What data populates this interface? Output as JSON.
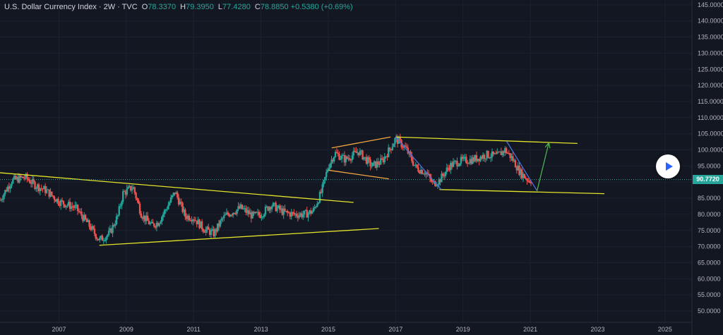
{
  "header": {
    "symbol": "U.S. Dollar Currency Index · 2W · TVC",
    "o_label": "O",
    "o_value": "78.3370",
    "h_label": "H",
    "h_value": "79.3950",
    "l_label": "L",
    "l_value": "77.4280",
    "c_label": "C",
    "c_value": "78.8850",
    "change": "+0.5380 (+0.69%)"
  },
  "last_price_label": "90.7720",
  "colors": {
    "background": "#131722",
    "up": "#26a69a",
    "down": "#ef5350",
    "trendline": "#e3e32a",
    "orange_line": "#f5a742",
    "blue_line": "#4a6fd8",
    "arrow": "#4caf50",
    "price_line": "#26a69a"
  },
  "icons": {
    "play": "play-icon"
  },
  "chart_data": {
    "type": "candlestick",
    "y_axis": {
      "ticks": [
        145,
        140,
        135,
        130,
        125,
        120,
        115,
        110,
        105,
        100,
        95,
        90,
        85,
        80,
        75,
        70,
        65,
        60,
        55,
        50
      ],
      "tick_labels": [
        "145.0000",
        "140.0000",
        "135.0000",
        "130.0000",
        "125.0000",
        "120.0000",
        "115.0000",
        "110.0000",
        "105.0000",
        "100.0000",
        "95.0000",
        "90.0000",
        "85.0000",
        "80.0000",
        "75.0000",
        "70.0000",
        "65.0000",
        "60.0000",
        "55.0000",
        "50.0000"
      ],
      "range": [
        46.5,
        146.5
      ]
    },
    "x_axis": {
      "ticks": [
        2007,
        2009,
        2011,
        2013,
        2015,
        2017,
        2019,
        2021,
        2023,
        2025
      ],
      "tick_labels": [
        "2007",
        "2009",
        "2011",
        "2013",
        "2015",
        "2017",
        "2019",
        "2021",
        "2023",
        "2025"
      ],
      "range": [
        2005.25,
        2025.8
      ]
    },
    "last_price": 90.772,
    "price_path": [
      [
        2005.25,
        84.5
      ],
      [
        2005.6,
        90.5
      ],
      [
        2006.0,
        91.5
      ],
      [
        2006.3,
        89.0
      ],
      [
        2006.6,
        87.5
      ],
      [
        2007.0,
        84.0
      ],
      [
        2007.5,
        82.0
      ],
      [
        2007.9,
        76.5
      ],
      [
        2008.2,
        72.0
      ],
      [
        2008.5,
        74.0
      ],
      [
        2008.75,
        79.5
      ],
      [
        2008.9,
        86.5
      ],
      [
        2009.2,
        88.5
      ],
      [
        2009.45,
        80.0
      ],
      [
        2009.75,
        76.5
      ],
      [
        2009.95,
        77.5
      ],
      [
        2010.2,
        82.0
      ],
      [
        2010.45,
        87.0
      ],
      [
        2010.75,
        79.5
      ],
      [
        2011.0,
        79.0
      ],
      [
        2011.3,
        75.5
      ],
      [
        2011.6,
        74.0
      ],
      [
        2011.85,
        78.5
      ],
      [
        2012.0,
        80.0
      ],
      [
        2012.4,
        82.0
      ],
      [
        2012.75,
        79.5
      ],
      [
        2013.0,
        80.0
      ],
      [
        2013.3,
        83.0
      ],
      [
        2013.7,
        80.5
      ],
      [
        2014.0,
        80.0
      ],
      [
        2014.3,
        80.0
      ],
      [
        2014.55,
        81.0
      ],
      [
        2014.8,
        87.0
      ],
      [
        2015.0,
        95.0
      ],
      [
        2015.2,
        99.0
      ],
      [
        2015.5,
        97.0
      ],
      [
        2015.9,
        99.5
      ],
      [
        2016.3,
        95.0
      ],
      [
        2016.6,
        96.5
      ],
      [
        2016.9,
        101.5
      ],
      [
        2017.0,
        103.5
      ],
      [
        2017.3,
        100.5
      ],
      [
        2017.6,
        94.5
      ],
      [
        2017.9,
        93.0
      ],
      [
        2018.1,
        89.5
      ],
      [
        2018.3,
        90.5
      ],
      [
        2018.6,
        95.0
      ],
      [
        2018.9,
        96.5
      ],
      [
        2019.3,
        97.0
      ],
      [
        2019.7,
        98.5
      ],
      [
        2020.0,
        98.0
      ],
      [
        2020.25,
        100.0
      ],
      [
        2020.45,
        97.5
      ],
      [
        2020.7,
        93.0
      ],
      [
        2020.95,
        90.5
      ],
      [
        2021.05,
        90.77
      ]
    ],
    "drawings": [
      {
        "type": "trendline",
        "color": "trendline",
        "points": [
          [
            2005.25,
            92.9
          ],
          [
            2015.75,
            83.7
          ]
        ]
      },
      {
        "type": "trendline",
        "color": "trendline",
        "points": [
          [
            2008.2,
            70.4
          ],
          [
            2016.5,
            75.6
          ]
        ]
      },
      {
        "type": "trendline",
        "color": "trendline",
        "points": [
          [
            2017.0,
            104.0
          ],
          [
            2022.4,
            102.0
          ]
        ]
      },
      {
        "type": "trendline",
        "color": "trendline",
        "points": [
          [
            2018.3,
            87.7
          ],
          [
            2023.2,
            86.4
          ]
        ]
      },
      {
        "type": "trendline",
        "color": "orange_line",
        "points": [
          [
            2015.1,
            100.6
          ],
          [
            2016.85,
            104.0
          ]
        ]
      },
      {
        "type": "trendline",
        "color": "orange_line",
        "points": [
          [
            2015.0,
            93.7
          ],
          [
            2016.8,
            91.0
          ]
        ]
      },
      {
        "type": "trendline",
        "color": "blue_line",
        "points": [
          [
            2017.0,
            104.0
          ],
          [
            2018.35,
            87.7
          ]
        ]
      },
      {
        "type": "trendline",
        "color": "blue_line",
        "points": [
          [
            2020.3,
            102.6
          ],
          [
            2021.2,
            87.3
          ]
        ]
      },
      {
        "type": "arrow",
        "color": "arrow",
        "points": [
          [
            2021.2,
            87.3
          ],
          [
            2021.55,
            102.2
          ]
        ]
      }
    ]
  }
}
